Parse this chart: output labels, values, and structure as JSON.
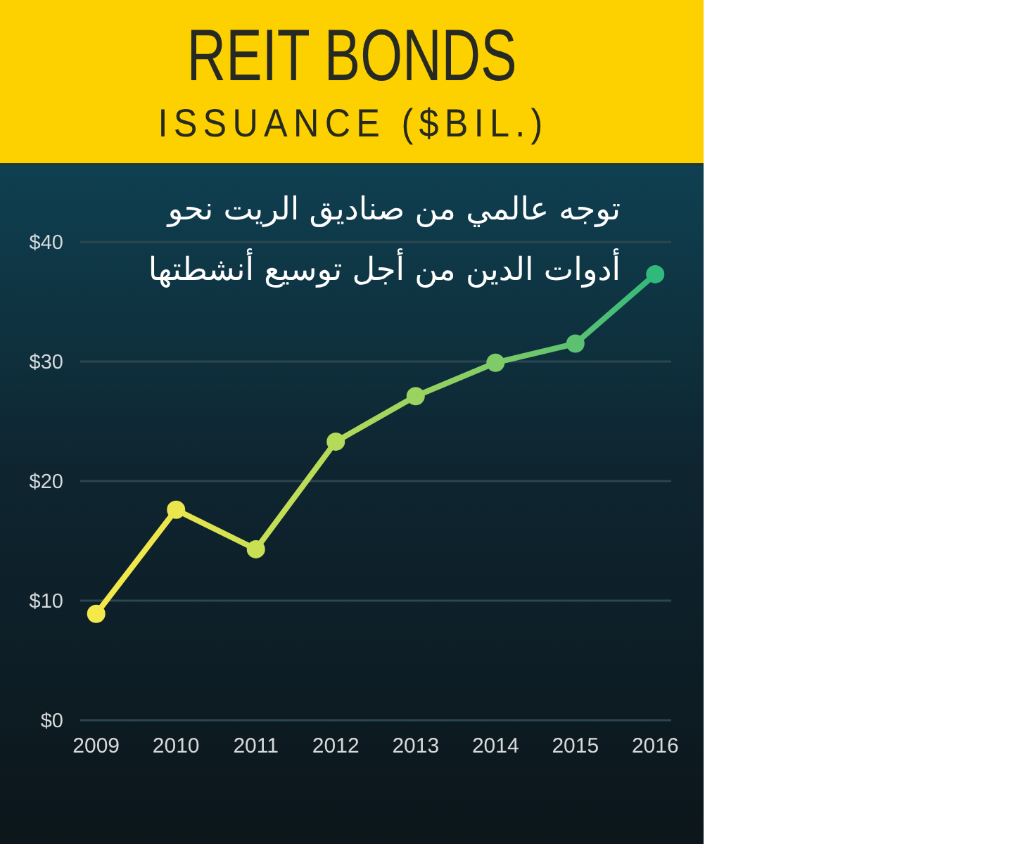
{
  "chart_data": {
    "type": "line",
    "title": "REIT BONDS",
    "subtitle": "ISSUANCE ($BIL.)",
    "annotations": [
      "توجه عالمي من صناديق الريت نحو\nأدوات الدين من أجل توسيع أنشطتها"
    ],
    "categories": [
      "2009",
      "2010",
      "2011",
      "2012",
      "2013",
      "2014",
      "2015",
      "2016"
    ],
    "series": [
      {
        "values": [
          8.9,
          17.6,
          14.3,
          23.3,
          27.1,
          29.9,
          31.5,
          37.3
        ],
        "colors": [
          "#f4e84b",
          "#ebe64c",
          "#c9e053",
          "#b3da59",
          "#9bd360",
          "#7fcb67",
          "#5cc271",
          "#31b97b"
        ]
      }
    ],
    "ylim": [
      0,
      40
    ],
    "yticks": [
      {
        "value": 0,
        "label": "$0"
      },
      {
        "value": 10,
        "label": "$10"
      },
      {
        "value": 20,
        "label": "$20"
      },
      {
        "value": 30,
        "label": "$30"
      },
      {
        "value": 40,
        "label": "$40"
      }
    ],
    "grid": "y",
    "marker": "circle",
    "line_style": "solid"
  }
}
